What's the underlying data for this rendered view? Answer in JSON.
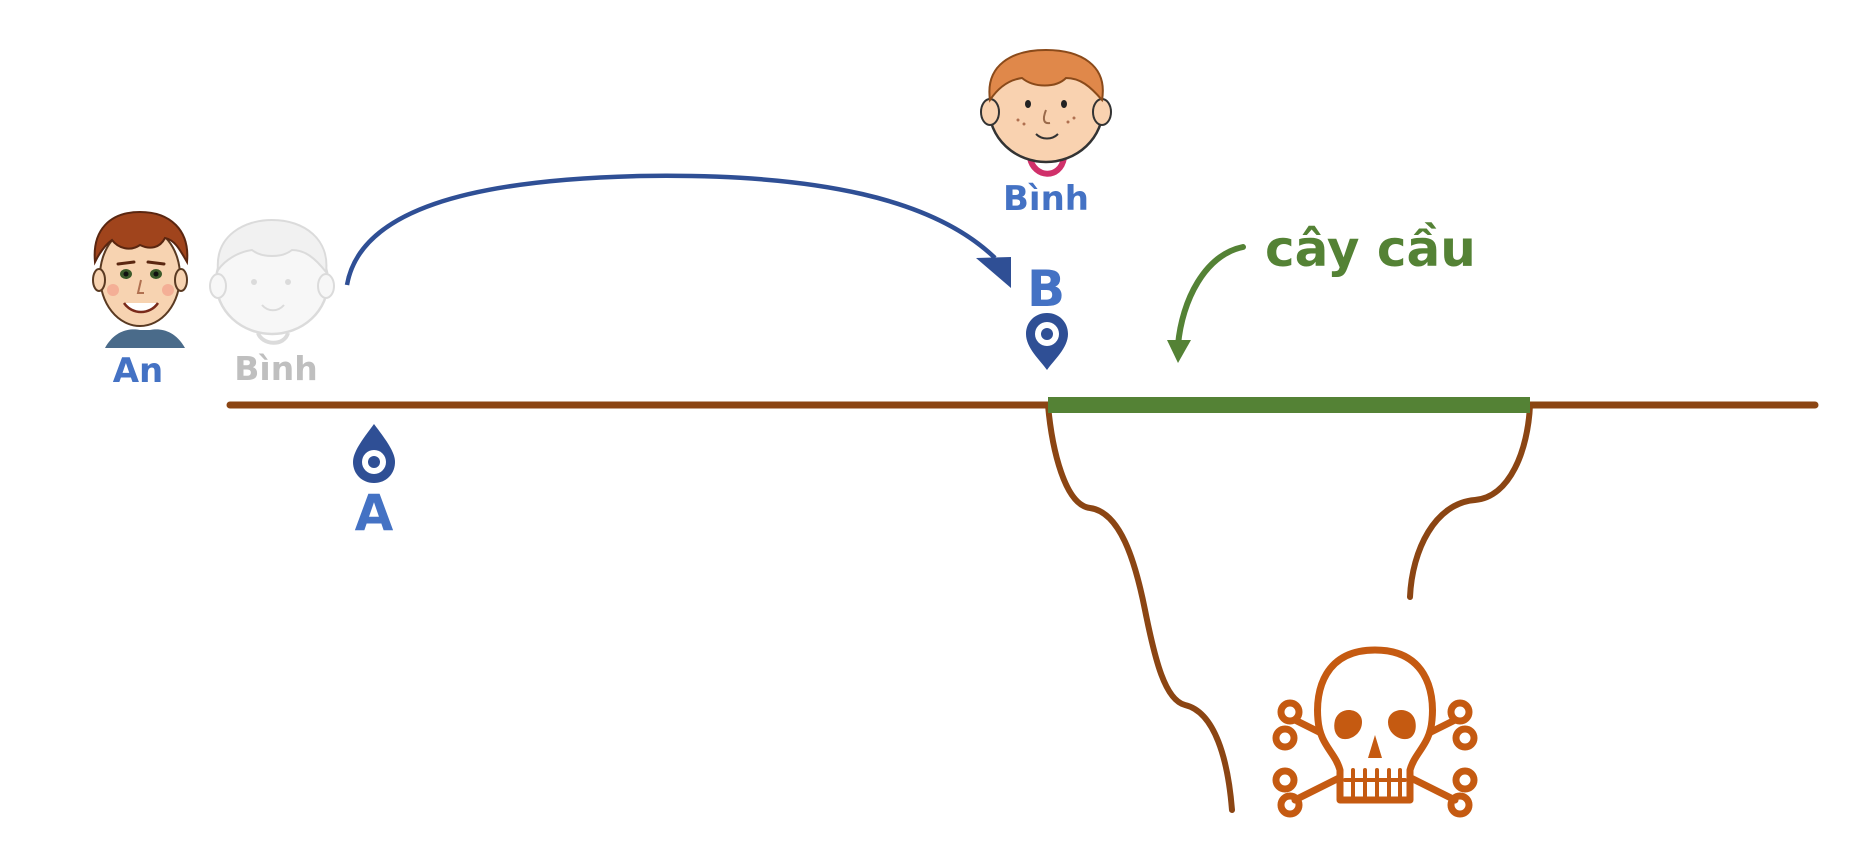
{
  "labels": {
    "an": "An",
    "binh_start": "Bình",
    "binh_end": "Bình",
    "point_a": "A",
    "point_b": "B",
    "bridge": "cây cầu"
  },
  "icons": {
    "point_a": "location-drop-icon",
    "point_b": "map-pin-icon",
    "danger": "skull-crossbones-icon",
    "an_avatar": "boy-face-icon",
    "binh_avatar": "boy-face-icon"
  },
  "colors": {
    "ground": "#8b4513",
    "bridge": "#548235",
    "marker": "#2f4f95",
    "label_blue": "#4472c4",
    "faded": "#bfbfbf",
    "skull": "#c55a11",
    "jump_arrow": "#2f4f95",
    "bridge_arrow": "#548235"
  }
}
